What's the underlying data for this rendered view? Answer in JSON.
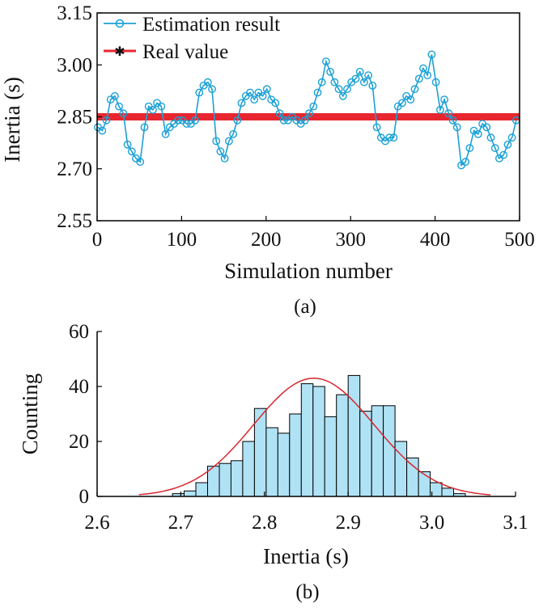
{
  "chart_data": [
    {
      "id": "a",
      "type": "line",
      "caption": "(a)",
      "xlabel": "Simulation number",
      "ylabel": "Inertia (s)",
      "xlim": [
        0,
        500
      ],
      "ylim": [
        2.55,
        3.15
      ],
      "xticks": [
        "0",
        "100",
        "200",
        "300",
        "400",
        "500"
      ],
      "yticks": [
        "2.55",
        "2.70",
        "2.85",
        "3.00",
        "3.15"
      ],
      "legend_position": "top-left",
      "grid": false,
      "series": [
        {
          "name": "Estimation result",
          "color": "#1ba1d6",
          "marker": "circle",
          "x_start": 1,
          "x_step": 5,
          "values": [
            2.82,
            2.81,
            2.84,
            2.9,
            2.91,
            2.88,
            2.86,
            2.77,
            2.75,
            2.73,
            2.72,
            2.82,
            2.88,
            2.87,
            2.89,
            2.88,
            2.8,
            2.82,
            2.83,
            2.84,
            2.84,
            2.83,
            2.83,
            2.84,
            2.92,
            2.94,
            2.95,
            2.93,
            2.78,
            2.75,
            2.73,
            2.78,
            2.8,
            2.84,
            2.89,
            2.91,
            2.92,
            2.9,
            2.92,
            2.91,
            2.93,
            2.9,
            2.89,
            2.86,
            2.84,
            2.84,
            2.85,
            2.84,
            2.83,
            2.84,
            2.86,
            2.88,
            2.92,
            2.95,
            3.01,
            2.98,
            2.95,
            2.93,
            2.91,
            2.93,
            2.95,
            2.96,
            2.98,
            2.95,
            2.97,
            2.94,
            2.82,
            2.79,
            2.78,
            2.79,
            2.79,
            2.88,
            2.89,
            2.91,
            2.9,
            2.93,
            2.96,
            2.99,
            2.97,
            3.03,
            2.95,
            2.87,
            2.9,
            2.86,
            2.84,
            2.82,
            2.71,
            2.72,
            2.76,
            2.81,
            2.8,
            2.83,
            2.82,
            2.79,
            2.76,
            2.73,
            2.74,
            2.77,
            2.79,
            2.84
          ]
        },
        {
          "name": "Real value",
          "color": "#e8262f",
          "marker": "asterisk",
          "constant": 2.85
        }
      ]
    },
    {
      "id": "b",
      "type": "bar",
      "caption": "(b)",
      "xlabel": "Inertia (s)",
      "ylabel": "Counting",
      "xlim": [
        2.6,
        3.1
      ],
      "ylim": [
        0,
        60
      ],
      "xticks": [
        "2.6",
        "2.7",
        "2.8",
        "2.9",
        "3.0",
        "3.1"
      ],
      "yticks": [
        "0",
        "20",
        "40",
        "60"
      ],
      "bar_color": "#b0e2f5",
      "bin_start": 2.69,
      "bin_width": 0.014,
      "counts": [
        1,
        2,
        5,
        11,
        12,
        13,
        20,
        32,
        25,
        23,
        30,
        41,
        40,
        29,
        37,
        44,
        31,
        33,
        33,
        20,
        14,
        9,
        5,
        3,
        1
      ],
      "fit_curve": {
        "type": "normal",
        "mean": 2.859,
        "std": 0.072,
        "peak": 43,
        "range": [
          2.65,
          3.07
        ],
        "color": "#d8262f"
      }
    }
  ]
}
